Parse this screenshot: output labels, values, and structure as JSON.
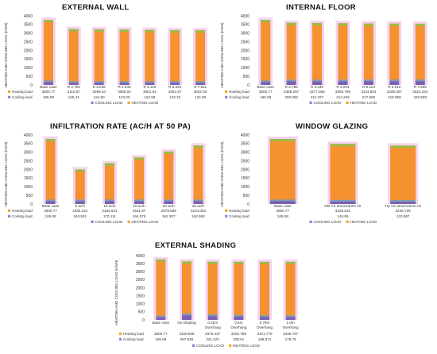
{
  "colors": {
    "heating": "#f5922f",
    "cooling": "#7b5fb4",
    "heating_marker": "#f5a623",
    "cooling_marker": "#9b7fd4",
    "band": "#f6d3f0",
    "band_light": "#f9e2f5",
    "green": "#88c24a",
    "red": "#ef4b3c",
    "blue": "#5aa0d8"
  },
  "chart_data": [
    {
      "type": "bar",
      "title": "EXTERNAL WALL",
      "ylabel": "HEATING AND COOLING LOAD (KWH)",
      "ylim": [
        0,
        4000
      ],
      "yticks": [
        0,
        500,
        1000,
        1500,
        2000,
        2500,
        3000,
        3500,
        4000
      ],
      "categories": [
        "Base case",
        "R 2.794",
        "R 3.246",
        "R 4.040",
        "R 5.119",
        "R 6.024",
        "R 7.611"
      ],
      "series": [
        {
          "name": "Heating load",
          "values": [
            3600.77,
            3115.57,
            3099.34,
            3085.04,
            3061.64,
            3051.57,
            3042.66
          ]
        },
        {
          "name": "Cooling load",
          "values": [
            165.59,
            125.41,
            124.8,
            123.05,
            123.59,
            123.23,
            122.29
          ]
        }
      ],
      "value_labels": {
        "heating": [
          "3600.77",
          "3115.57",
          "3099.34",
          "3085.04",
          "3061.64",
          "3051.57",
          "3042.66"
        ],
        "cooling": [
          "165.59",
          "125.41",
          "124.80",
          "123.05",
          "123.59",
          "123.23",
          "122.29"
        ]
      },
      "legend": [
        "COOLING LOAD",
        "HEATING LOAD"
      ],
      "legend_position": "bottom"
    },
    {
      "type": "bar",
      "title": "INTERNAL FLOOR",
      "ylabel": "HEATING AND COOLING LOAD (KWH)",
      "ylim": [
        0,
        4000
      ],
      "yticks": [
        0,
        500,
        1000,
        1500,
        2000,
        2500,
        3000,
        3500,
        4000
      ],
      "categories": [
        "Base case",
        "R 2.788",
        "R 3.240",
        "R 4.034",
        "R 5.113",
        "R 6.018",
        "R 7.605"
      ],
      "series": [
        {
          "name": "Heating load",
          "values": [
            3600.77,
            3389.297,
            3377.068,
            3360.766,
            3344.603,
            3335.397,
            3323.334
          ]
        },
        {
          "name": "Cooling load",
          "values": [
            165.59,
            209.092,
            211.327,
            214.245,
            217.892,
            219.069,
            220.583
          ]
        }
      ],
      "value_labels": {
        "heating": [
          "3600.77",
          "3389.297",
          "3377.068",
          "3360.766",
          "3344.603",
          "3335.397",
          "3323.334"
        ],
        "cooling": [
          "165.59",
          "209.092",
          "211.327",
          "214.245",
          "217.892",
          "219.069",
          "220.583"
        ]
      },
      "legend": [
        "COOLING LOAD",
        "HEATING LOAD"
      ],
      "legend_position": "bottom"
    },
    {
      "type": "bar",
      "title": "INFILTRATION RATE (AC/H AT 50 PA)",
      "ylabel": "HEATING AND COOLING LOAD (KWH)",
      "ylim": [
        0,
        4000
      ],
      "yticks": [
        0,
        500,
        1000,
        1500,
        2000,
        2500,
        3000,
        3500,
        4000
      ],
      "categories": [
        "Base case",
        "5 ac/h",
        "10 ac/h",
        "15 ac/h",
        "20 ac/h",
        "25 ac/h"
      ],
      "series": [
        {
          "name": "Heating load",
          "values": [
            3600.77,
            1835.161,
            2184.641,
            2531.97,
            2878.559,
            3224.063
          ]
        },
        {
          "name": "Cooling load",
          "values": [
            165.59,
            163.531,
            170.111,
            164.076,
            162.307,
            162.993
          ]
        }
      ],
      "value_labels": {
        "heating": [
          "3600.77",
          "1835.161",
          "2184.641",
          "2531.97",
          "2878.559",
          "3224.063"
        ],
        "cooling": [
          "165.59",
          "163.531",
          "170.111",
          "164.076",
          "162.307",
          "162.993"
        ]
      },
      "legend": [
        "COOLING LOAD",
        "HEATING LOAD"
      ],
      "legend_position": "bottom"
    },
    {
      "type": "bar",
      "title": "WINDOW GLAZING",
      "ylabel": "HEATING AND COOLING LOAD (KWH)",
      "ylim": [
        0,
        4000
      ],
      "yticks": [
        0,
        500,
        1000,
        1500,
        2000,
        2500,
        3000,
        3500,
        4000
      ],
      "categories": [
        "Base case",
        "Dbl Clr 3mm/13mm Air",
        "Trp Clr 3mm/13mm Air"
      ],
      "series": [
        {
          "name": "Heating load",
          "values": [
            3600.77,
            3329.623,
            3248.739
          ]
        },
        {
          "name": "Cooling load",
          "values": [
            165.59,
            146.85,
            133.987
          ]
        }
      ],
      "value_labels": {
        "heating": [
          "3600.77",
          "3329.623",
          "3248.739"
        ],
        "cooling": [
          "165.59",
          "146.85",
          "133.987"
        ]
      },
      "legend": [
        "COOLING LOAD",
        "HEATING LOAD"
      ],
      "legend_position": "bottom"
    },
    {
      "type": "bar",
      "title": "EXTERNAL SHADING",
      "ylabel": "HEATING AND COOLING LOAD (KWH)",
      "ylim": [
        0,
        4000
      ],
      "yticks": [
        0,
        500,
        1000,
        1500,
        2000,
        2500,
        3000,
        3500,
        4000
      ],
      "categories": [
        "Base case",
        "No shading",
        "0.25m Overhang",
        "0.5m Overhang",
        "0.75m Overhang",
        "1.0m Overhang"
      ],
      "series": [
        {
          "name": "Heating load",
          "values": [
            3600.77,
            3349.508,
            3376.437,
            3402.789,
            3421.779,
            3435.767
          ]
        },
        {
          "name": "Cooling load",
          "values": [
            165.59,
            287.936,
            241.222,
            208.51,
            188.871,
            178.76
          ]
        }
      ],
      "value_labels": {
        "heating": [
          "3600.77",
          "3349.508",
          "3376.437",
          "3402.789",
          "3421.779",
          "3435.767"
        ],
        "cooling": [
          "165.59",
          "287.936",
          "241.222",
          "208.51",
          "188.871",
          "178.76"
        ]
      },
      "legend": [
        "COOLING LOAD",
        "HEATING LOAD"
      ],
      "legend_position": "bottom"
    }
  ]
}
